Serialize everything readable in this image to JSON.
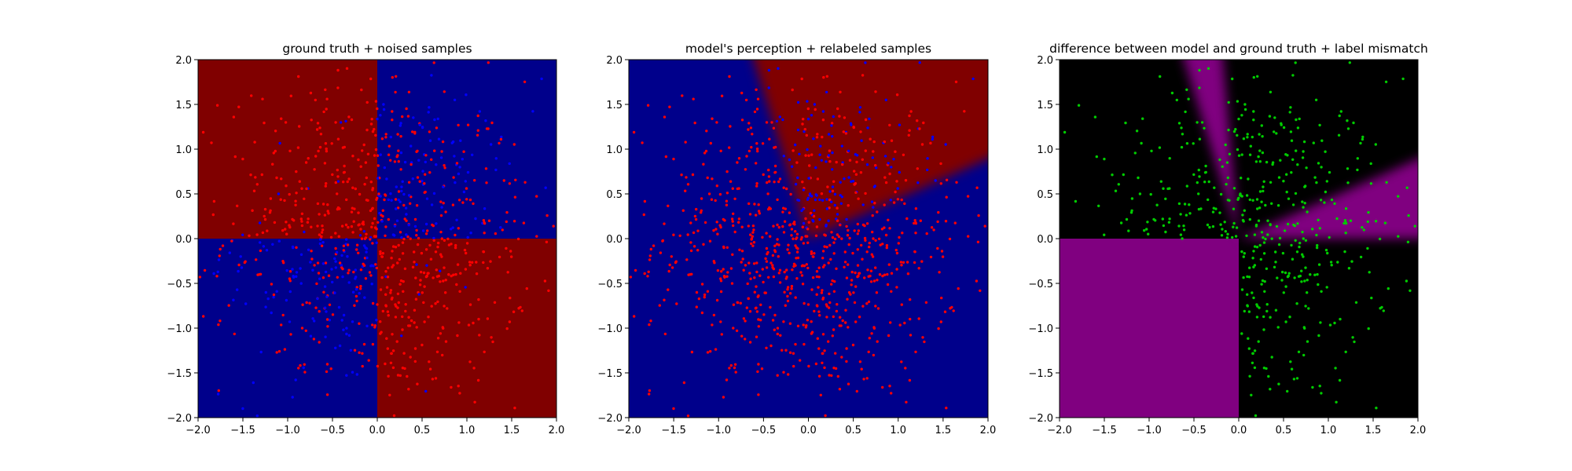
{
  "figure": {
    "background": "#ffffff"
  },
  "chart_data": [
    {
      "type": "scatter",
      "title": "ground truth + noised samples",
      "xlim": [
        -2.0,
        2.0
      ],
      "ylim": [
        -2.0,
        2.0
      ],
      "xticks": [
        "−2.0",
        "−1.5",
        "−1.0",
        "−0.5",
        "0.0",
        "0.5",
        "1.0",
        "1.5",
        "2.0"
      ],
      "yticks": [
        "−2.0",
        "−1.5",
        "−1.0",
        "−0.5",
        "0.0",
        "0.5",
        "1.0",
        "1.5",
        "2.0"
      ],
      "background_map": {
        "kind": "quadrants",
        "top_left": "#800000",
        "top_right": "#00008b",
        "bottom_left": "#00008b",
        "bottom_right": "#800000"
      },
      "point_classes": [
        "red",
        "blue"
      ],
      "point_colors": {
        "red": "#ff0000",
        "blue": "#0000ff"
      },
      "grid": false,
      "legend": "none"
    },
    {
      "type": "scatter",
      "title": "model's perception + relabeled samples",
      "xlim": [
        -2.0,
        2.0
      ],
      "ylim": [
        -2.0,
        2.0
      ],
      "xticks": [
        "−2.0",
        "−1.5",
        "−1.0",
        "−0.5",
        "0.0",
        "0.5",
        "1.0",
        "1.5",
        "2.0"
      ],
      "yticks": [
        "−2.0",
        "−1.5",
        "−1.0",
        "−0.5",
        "0.0",
        "0.5",
        "1.0",
        "1.5",
        "2.0"
      ],
      "background_map": {
        "kind": "wedge",
        "base": "#00008b",
        "wedge": "#800000",
        "wedge_from_angle_deg": 24,
        "wedge_to_angle_deg": 107
      },
      "point_classes": [
        "red",
        "blue"
      ],
      "point_colors": {
        "red": "#ff0000",
        "blue": "#0000ff"
      },
      "grid": false,
      "legend": "none"
    },
    {
      "type": "scatter",
      "title": "difference between model and ground truth + label mismatch",
      "xlim": [
        -2.0,
        2.0
      ],
      "ylim": [
        -2.0,
        2.0
      ],
      "xticks": [
        "−2.0",
        "−1.5",
        "−1.0",
        "−0.5",
        "0.0",
        "0.5",
        "1.0",
        "1.5",
        "2.0"
      ],
      "yticks": [
        "−2.0",
        "−1.5",
        "−1.0",
        "−0.5",
        "0.0",
        "0.5",
        "1.0",
        "1.5",
        "2.0"
      ],
      "background_map": {
        "kind": "mismatch",
        "base": "#000000",
        "mismatch": "#800080",
        "bottom_left": "#800080"
      },
      "point_classes": [
        "mismatch"
      ],
      "point_colors": {
        "mismatch": "#00cc00"
      },
      "grid": false,
      "legend": "none"
    }
  ]
}
